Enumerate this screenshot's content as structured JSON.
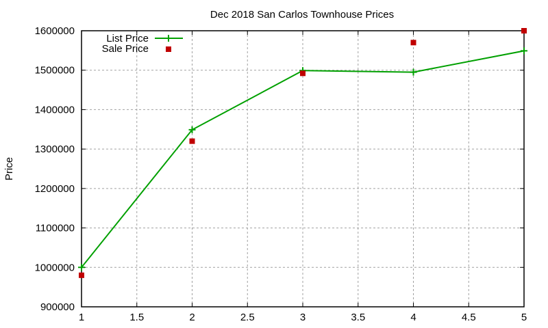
{
  "chart_data": {
    "type": "line",
    "title": "Dec 2018 San Carlos Townhouse Prices",
    "xlabel": "",
    "ylabel": "Price",
    "xlim": [
      1,
      5
    ],
    "ylim": [
      900000,
      1600000
    ],
    "x_ticks": [
      "1",
      "1.5",
      "2",
      "2.5",
      "3",
      "3.5",
      "4",
      "4.5",
      "5"
    ],
    "x_tick_values": [
      1,
      1.5,
      2,
      2.5,
      3,
      3.5,
      4,
      4.5,
      5
    ],
    "y_ticks": [
      "900000",
      "1000000",
      "1100000",
      "1200000",
      "1300000",
      "1400000",
      "1500000",
      "1600000"
    ],
    "y_tick_values": [
      900000,
      1000000,
      1100000,
      1200000,
      1300000,
      1400000,
      1500000,
      1600000
    ],
    "grid": true,
    "legend_position": "top-left",
    "series": [
      {
        "name": "List Price",
        "style": "linespoints",
        "marker": "plus",
        "color": "#00a000",
        "x": [
          1,
          2,
          3,
          4,
          5
        ],
        "values": [
          1000000,
          1349000,
          1499000,
          1495000,
          1549000
        ]
      },
      {
        "name": "Sale Price",
        "style": "points",
        "marker": "square",
        "color": "#c00000",
        "x": [
          1,
          2,
          3,
          4,
          5
        ],
        "values": [
          980000,
          1320000,
          1492000,
          1570000,
          1600000
        ]
      }
    ]
  },
  "legend": {
    "items": [
      {
        "label": "List Price"
      },
      {
        "label": "Sale Price"
      }
    ]
  }
}
